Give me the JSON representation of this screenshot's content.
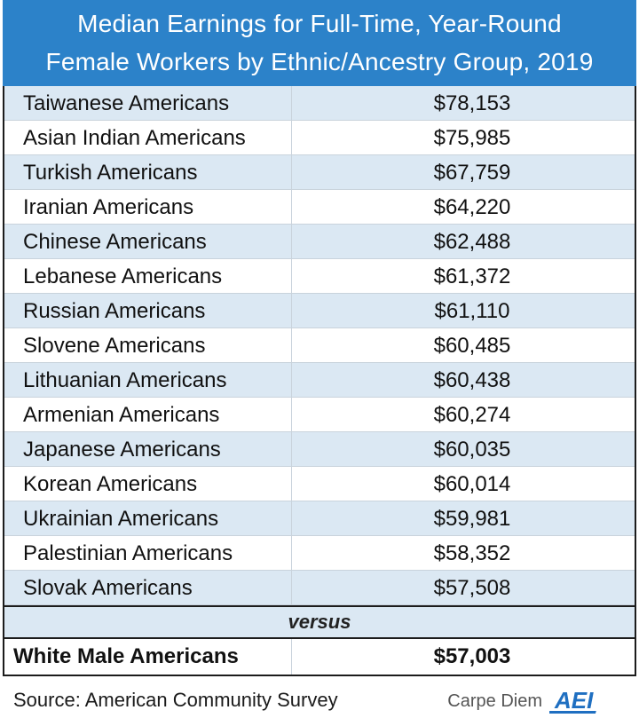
{
  "title_line1": "Median Earnings for Full-Time, Year-Round",
  "title_line2": "Female Workers by Ethnic/Ancestry Group, 2019",
  "versus_label": "versus",
  "comparison": {
    "label": "White Male Americans",
    "value_text": "$57,003",
    "value": 57003
  },
  "footer": {
    "source": "Source: American Community Survey",
    "brand_text": "Carpe Diem",
    "logo_icon": "aei-logo",
    "logo_text": "AEI"
  },
  "colors": {
    "header_bg": "#2c82c9",
    "alt_row_bg": "#dbe8f3",
    "logo_blue": "#1f6fc1"
  },
  "chart_data": {
    "type": "table",
    "title": "Median Earnings for Full-Time, Year-Round Female Workers by Ethnic/Ancestry Group, 2019",
    "rows": [
      {
        "group": "Taiwanese Americans",
        "value_text": "$78,153",
        "value": 78153
      },
      {
        "group": "Asian Indian Americans",
        "value_text": "$75,985",
        "value": 75985
      },
      {
        "group": "Turkish Americans",
        "value_text": "$67,759",
        "value": 67759
      },
      {
        "group": "Iranian Americans",
        "value_text": "$64,220",
        "value": 64220
      },
      {
        "group": "Chinese Americans",
        "value_text": "$62,488",
        "value": 62488
      },
      {
        "group": "Lebanese Americans",
        "value_text": "$61,372",
        "value": 61372
      },
      {
        "group": "Russian Americans",
        "value_text": "$61,110",
        "value": 61110
      },
      {
        "group": "Slovene Americans",
        "value_text": "$60,485",
        "value": 60485
      },
      {
        "group": "Lithuanian Americans",
        "value_text": "$60,438",
        "value": 60438
      },
      {
        "group": "Armenian Americans",
        "value_text": "$60,274",
        "value": 60274
      },
      {
        "group": "Japanese Americans",
        "value_text": "$60,035",
        "value": 60035
      },
      {
        "group": "Korean Americans",
        "value_text": "$60,014",
        "value": 60014
      },
      {
        "group": "Ukrainian Americans",
        "value_text": "$59,981",
        "value": 59981
      },
      {
        "group": "Palestinian Americans",
        "value_text": "$58,352",
        "value": 58352
      },
      {
        "group": "Slovak Americans",
        "value_text": "$57,508",
        "value": 57508
      }
    ]
  }
}
